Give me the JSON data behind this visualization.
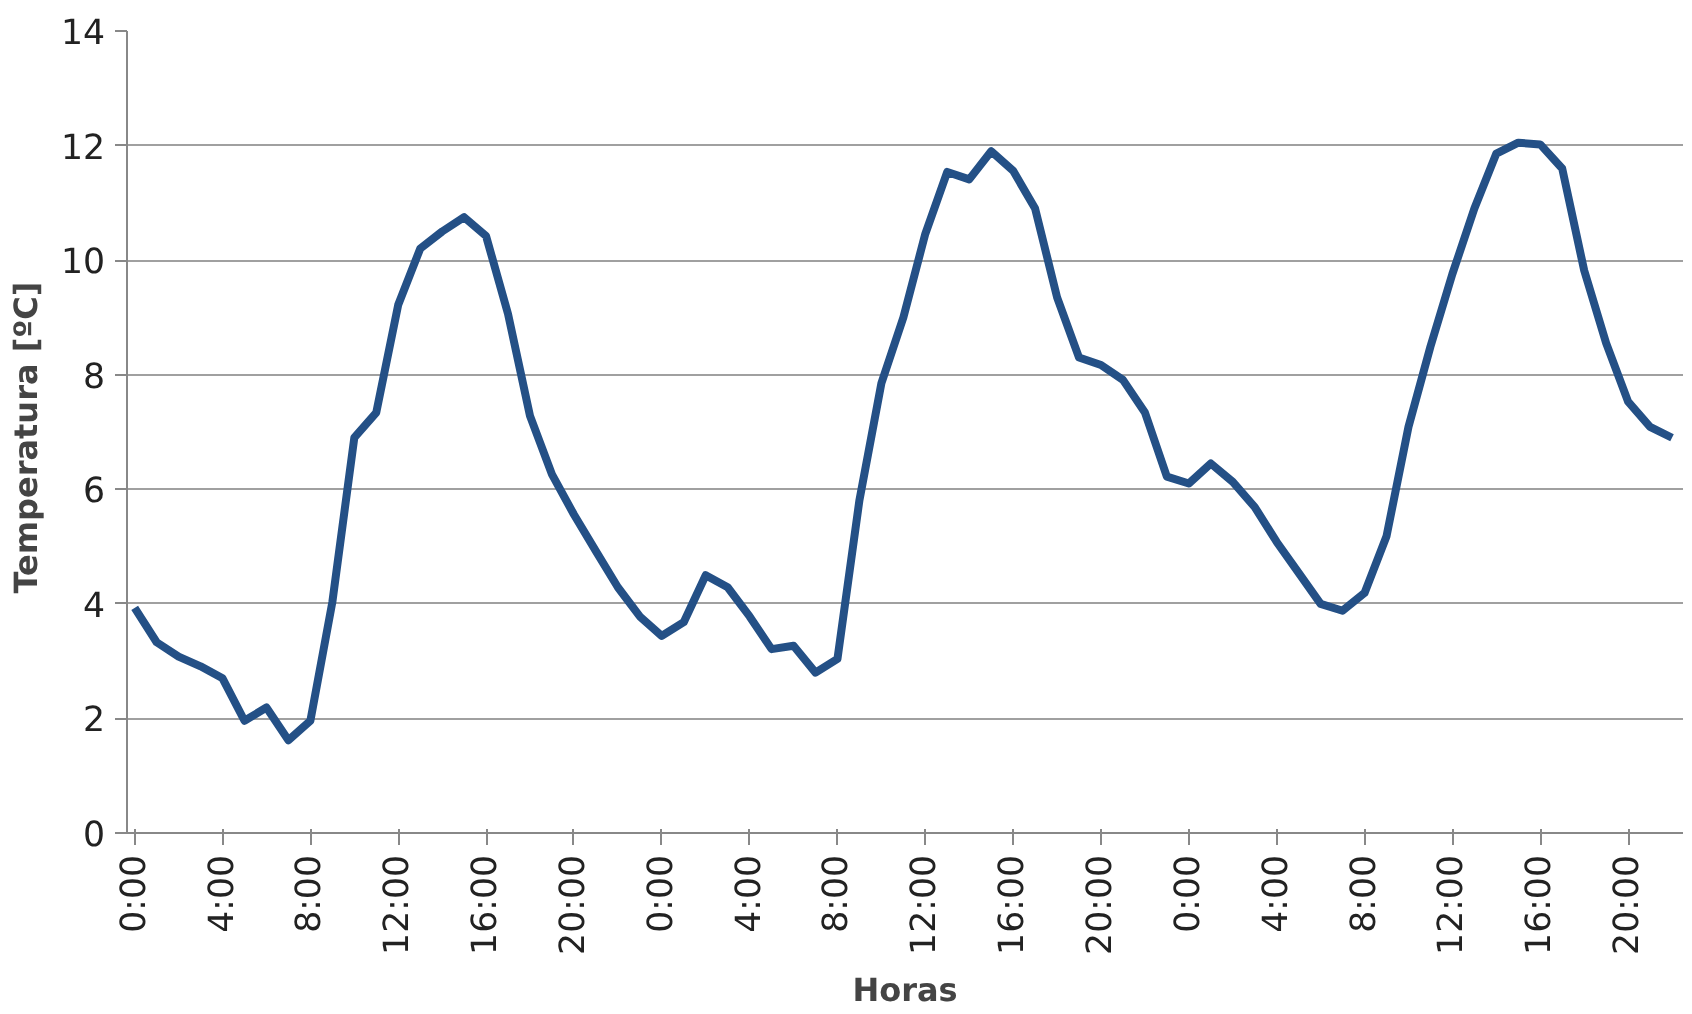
{
  "chart_data": {
    "type": "line",
    "xlabel": "Horas",
    "ylabel": "Temperatura  [ºC]",
    "categories": [
      "0:00",
      null,
      null,
      null,
      "4:00",
      null,
      null,
      null,
      "8:00",
      null,
      null,
      null,
      "12:00",
      null,
      null,
      null,
      "16:00",
      null,
      null,
      null,
      "20:00",
      null,
      null,
      null,
      "0:00",
      null,
      null,
      null,
      "4:00",
      null,
      null,
      null,
      "8:00",
      null,
      null,
      null,
      "12:00",
      null,
      null,
      null,
      "16:00",
      null,
      null,
      null,
      "20:00",
      null,
      null,
      null,
      "0:00",
      null,
      null,
      null,
      "4:00",
      null,
      null,
      null,
      "8:00",
      null,
      null,
      null,
      "12:00",
      null,
      null,
      null,
      "16:00",
      null,
      null,
      null,
      "20:00",
      null,
      null
    ],
    "series": [
      {
        "color": "#245086",
        "values": [
          3.93,
          3.33,
          3.08,
          2.91,
          2.7,
          1.96,
          2.19,
          1.62,
          1.96,
          4.03,
          6.9,
          7.34,
          9.22,
          10.2,
          10.5,
          10.75,
          10.42,
          9.06,
          7.28,
          6.26,
          5.56,
          4.92,
          4.29,
          3.78,
          3.44,
          3.68,
          4.5,
          4.29,
          3.78,
          3.21,
          3.27,
          2.8,
          3.04,
          5.81,
          7.85,
          9.0,
          10.46,
          11.54,
          11.41,
          11.9,
          11.56,
          10.9,
          9.35,
          8.3,
          8.17,
          7.91,
          7.34,
          6.22,
          6.1,
          6.45,
          6.13,
          5.69,
          5.08,
          4.54,
          4.0,
          3.88,
          4.19,
          5.18,
          7.09,
          8.49,
          9.76,
          10.9,
          11.86,
          12.05,
          12.02,
          11.6,
          9.82,
          8.55,
          7.53,
          7.09,
          6.9
        ]
      }
    ],
    "ylim": [
      0,
      14
    ],
    "yticks": [
      0,
      2,
      4,
      6,
      8,
      10,
      12,
      14
    ],
    "grid": "y",
    "marker": "none",
    "line_style": "solid"
  }
}
